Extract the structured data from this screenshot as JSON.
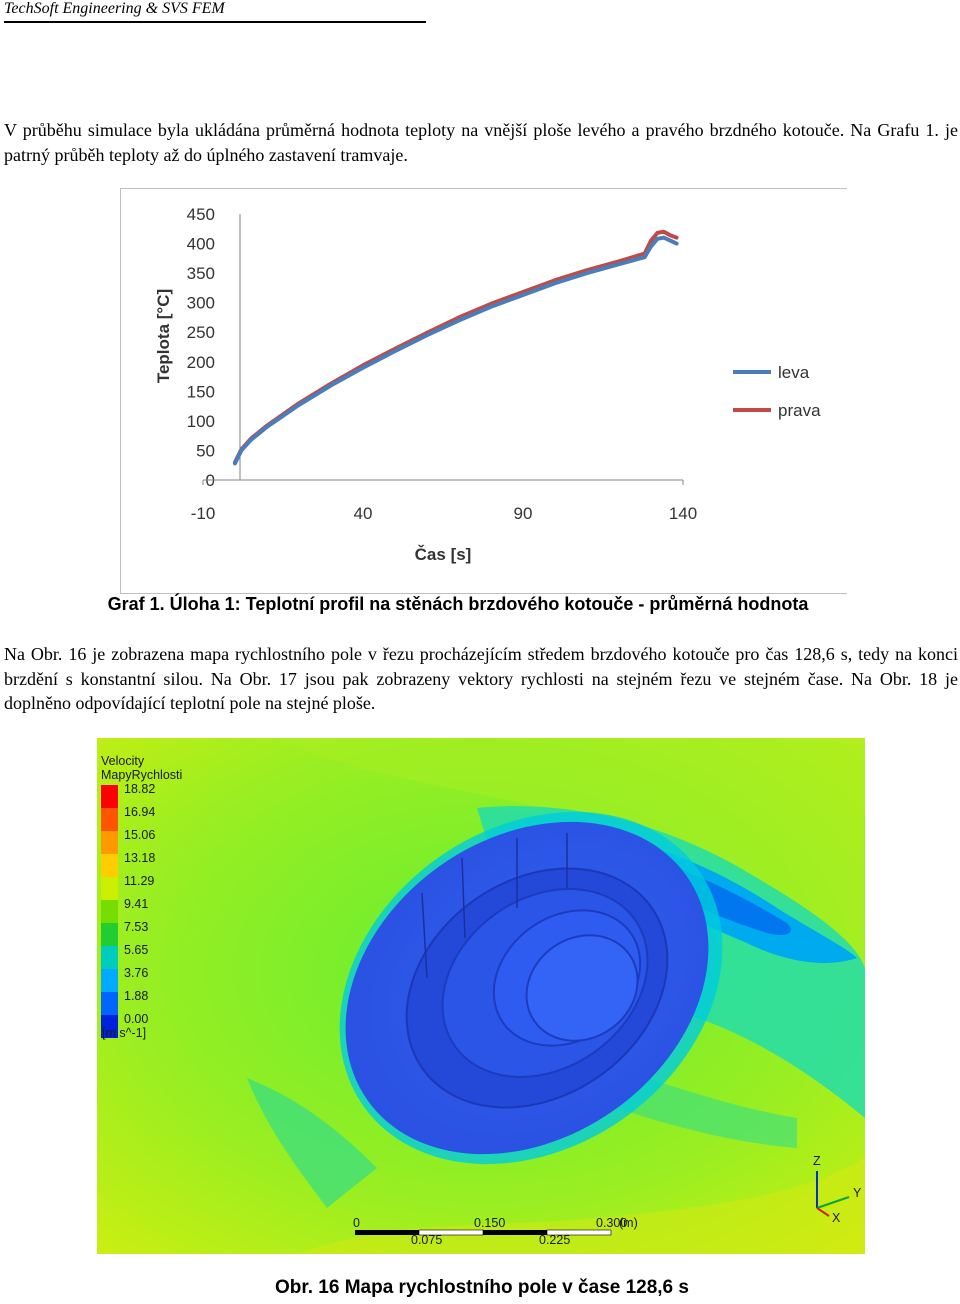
{
  "header": {
    "text": "TechSoft Engineering & SVS FEM"
  },
  "paragraph1": "V průběhu simulace byla ukládána průměrná hodnota teploty na vnější ploše levého a pravého brzdného kotouče. Na Grafu 1. je patrný průběh teploty až do úplného zastavení tramvaje.",
  "chart_data": {
    "type": "line",
    "ylabel": "Teplota [°C]",
    "xlabel": "Čas [s]",
    "y_ticks": [
      "450",
      "400",
      "350",
      "300",
      "250",
      "200",
      "150",
      "100",
      "50",
      "0"
    ],
    "x_ticks": [
      "-10",
      "40",
      "90",
      "140"
    ],
    "xlim": [
      -10,
      140
    ],
    "ylim": [
      0,
      450
    ],
    "legend_position": "right",
    "series": [
      {
        "name": "leva",
        "color": "#4a7ebb",
        "x": [
          0,
          2,
          5,
          10,
          20,
          30,
          40,
          50,
          60,
          70,
          80,
          90,
          100,
          110,
          120,
          128,
          130,
          132,
          134,
          136,
          138
        ],
        "y": [
          28,
          50,
          68,
          90,
          127,
          160,
          190,
          218,
          245,
          270,
          293,
          313,
          333,
          350,
          365,
          377,
          395,
          408,
          410,
          405,
          400
        ]
      },
      {
        "name": "prava",
        "color": "#be4b48",
        "x": [
          0,
          2,
          5,
          10,
          20,
          30,
          40,
          50,
          60,
          70,
          80,
          90,
          100,
          110,
          120,
          128,
          130,
          132,
          134,
          136,
          138
        ],
        "y": [
          30,
          52,
          70,
          92,
          130,
          163,
          194,
          222,
          249,
          275,
          298,
          318,
          338,
          355,
          370,
          383,
          405,
          418,
          420,
          414,
          410
        ]
      }
    ]
  },
  "caption1": "Graf 1. Úloha 1: Teplotní profil na stěnách brzdového kotouče - průměrná hodnota",
  "paragraph2": "Na Obr. 16 je zobrazena mapa rychlostního pole v řezu procházejícím středem brzdového kotouče pro čas 128,6 s, tedy na konci brzdění s konstantní silou. Na Obr. 17 jsou pak zobrazeny vektory rychlosti na stejném řezu ve stejném čase. Na Obr. 18 je doplněno odpovídající teplotní pole na stejné ploše.",
  "cfd": {
    "legend_title": "Velocity",
    "legend_subtitle": "MapyRychlosti",
    "legend_values": [
      "18.82",
      "16.94",
      "15.06",
      "13.18",
      "11.29",
      "9.41",
      "7.53",
      "5.65",
      "3.76",
      "1.88",
      "0.00"
    ],
    "legend_colors": [
      "#ff0000",
      "#ff5500",
      "#ff9900",
      "#ffcc00",
      "#ccee00",
      "#77dd00",
      "#22cc33",
      "#00ccbb",
      "#00aaff",
      "#0066ff",
      "#0022dd"
    ],
    "legend_unit": "[m s^-1]",
    "scale_top": [
      "0",
      "0.150",
      "0.300",
      "(m)"
    ],
    "scale_bottom": [
      "0.075",
      "0.225"
    ],
    "axis_labels": [
      "Z",
      "Y",
      "X"
    ]
  },
  "caption2": "Obr. 16 Mapa rychlostního pole v čase 128,6 s"
}
